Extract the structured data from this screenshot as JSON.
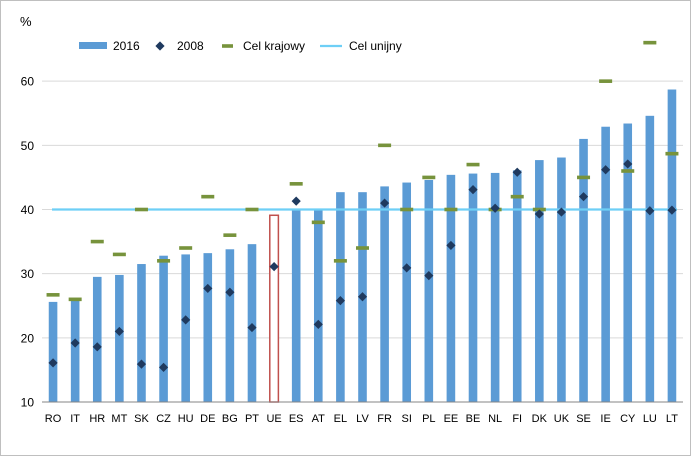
{
  "chart_data": {
    "type": "bar",
    "ylabel": "%",
    "ylim": [
      10,
      70
    ],
    "yticks": [
      10,
      20,
      30,
      40,
      50,
      60
    ],
    "grid": true,
    "legend_position": "top-left",
    "categories": [
      "RO",
      "IT",
      "HR",
      "MT",
      "SK",
      "CZ",
      "HU",
      "DE",
      "BG",
      "PT",
      "UE",
      "ES",
      "AT",
      "EL",
      "LV",
      "FR",
      "SI",
      "PL",
      "EE",
      "BE",
      "NL",
      "FI",
      "DK",
      "UK",
      "SE",
      "IE",
      "CY",
      "LU",
      "LT"
    ],
    "highlight_category": "UE",
    "series": [
      {
        "name": "2016",
        "kind": "bar",
        "color": "#5b9bd5",
        "values": [
          25.6,
          26.2,
          29.5,
          29.8,
          31.5,
          32.8,
          33.0,
          33.2,
          33.8,
          34.6,
          39.1,
          40.1,
          40.1,
          42.7,
          42.7,
          43.6,
          44.2,
          44.6,
          45.4,
          45.6,
          45.7,
          46.1,
          47.7,
          48.1,
          51.0,
          52.9,
          53.4,
          54.6,
          58.7
        ]
      },
      {
        "name": "2008",
        "kind": "marker-diamond",
        "color": "#1f3a5f",
        "values": [
          16.1,
          19.2,
          18.6,
          21.0,
          15.9,
          15.4,
          22.8,
          27.7,
          27.1,
          21.6,
          31.1,
          41.3,
          22.1,
          25.8,
          26.4,
          41.0,
          30.9,
          29.7,
          34.4,
          43.1,
          40.2,
          45.8,
          39.3,
          39.6,
          42.0,
          46.2,
          47.1,
          39.8,
          39.9
        ]
      },
      {
        "name": "Cel krajowy",
        "kind": "marker-dash",
        "color": "#77933c",
        "values": [
          26.7,
          26.0,
          35.0,
          33.0,
          40.0,
          32.0,
          34.0,
          42.0,
          36.0,
          40.0,
          null,
          44.0,
          38.0,
          32.0,
          34.0,
          50.0,
          40.0,
          45.0,
          40.0,
          47.0,
          40.0,
          42.0,
          40.0,
          null,
          45.0,
          60.0,
          46.0,
          66.0,
          48.7
        ]
      },
      {
        "name": "Cel unijny",
        "kind": "line",
        "color": "#6ecff6",
        "value": 40
      }
    ]
  }
}
